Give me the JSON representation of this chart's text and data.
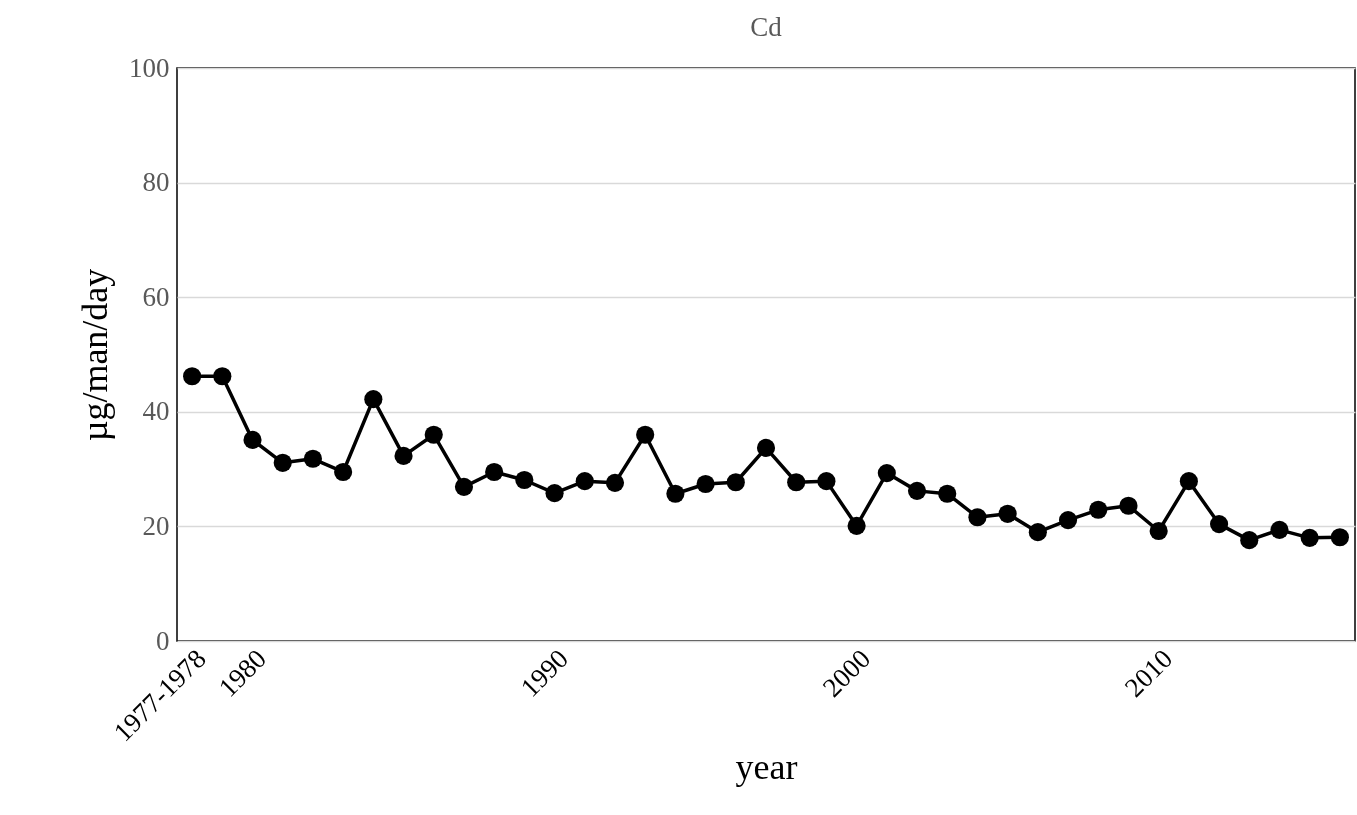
{
  "chart_data": {
    "type": "line",
    "title": "Cd",
    "xlabel": "year",
    "ylabel": "µg/man/day",
    "categories": [
      "1977-1978",
      null,
      "1980",
      null,
      null,
      null,
      null,
      null,
      null,
      null,
      null,
      null,
      "1990",
      null,
      null,
      null,
      null,
      null,
      null,
      null,
      null,
      null,
      "2000",
      null,
      null,
      null,
      null,
      null,
      null,
      null,
      null,
      null,
      "2010",
      null,
      null,
      null,
      null,
      null,
      null
    ],
    "series": [
      {
        "color": "#000000",
        "values": [
          46.2,
          46.2,
          35.1,
          31.1,
          31.8,
          29.5,
          42.2,
          32.3,
          36.0,
          26.9,
          29.5,
          28.1,
          25.8,
          27.9,
          27.6,
          36.0,
          25.7,
          27.4,
          27.7,
          33.7,
          27.7,
          27.9,
          20.1,
          29.3,
          26.2,
          25.7,
          21.6,
          22.2,
          19.0,
          21.1,
          22.9,
          23.6,
          19.2,
          27.9,
          20.4,
          17.6,
          19.4,
          18.0,
          18.1
        ]
      }
    ],
    "ylim": [
      0,
      100
    ],
    "yticks": [
      0,
      20,
      40,
      60,
      80,
      100
    ],
    "grid": "y",
    "marker": "circle",
    "line_style": "solid"
  }
}
